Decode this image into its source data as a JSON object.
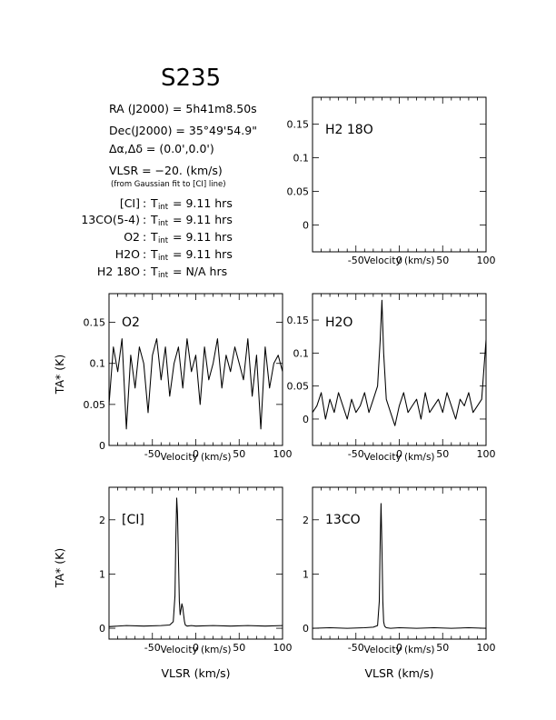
{
  "title": "S235",
  "info": {
    "ra": "RA (J2000) = 5h41m8.50s",
    "dec": "Dec(J2000) = 35°49'54.9\"",
    "offset": "Δα,Δδ = (0.0',0.0')",
    "vlsr": "VLSR = −20. (km/s)",
    "fit_note": "(from Gaussian fit to [CI] line)",
    "integrations": [
      {
        "line": "[CI]",
        "tint": "9.11 hrs"
      },
      {
        "line": "13CO(5-4)",
        "tint": "9.11 hrs"
      },
      {
        "line": "O2",
        "tint": "9.11 hrs"
      },
      {
        "line": "H2O",
        "tint": "9.11 hrs"
      },
      {
        "line": "H2 18O",
        "tint": "N/A hrs"
      }
    ]
  },
  "chart_data": [
    {
      "type": "line",
      "panel": "H2 18O",
      "label": "H2 18O",
      "xlabel": "Velocity (km/s)",
      "ylabel": "",
      "xlim": [
        -100,
        100
      ],
      "ylim": [
        -0.04,
        0.19
      ],
      "xticks": [
        -50,
        0,
        50,
        100
      ],
      "yticks": [
        0,
        0.05,
        0.1,
        0.15
      ],
      "ytick_labels": [
        "0",
        "0.05",
        "0.1",
        "0.15"
      ],
      "x": [],
      "y": []
    },
    {
      "type": "line",
      "panel": "O2",
      "label": "O2",
      "xlabel": "Velocity (km/s)",
      "ylabel": "TA* (K)",
      "xlim": [
        -100,
        100
      ],
      "ylim": [
        0,
        0.185
      ],
      "xticks": [
        -50,
        0,
        50,
        100
      ],
      "yticks": [
        0,
        0.05,
        0.1,
        0.15
      ],
      "ytick_labels": [
        "0",
        "0.05",
        "0.1",
        "0.15"
      ],
      "x": [
        -100,
        -95,
        -90,
        -85,
        -80,
        -75,
        -70,
        -65,
        -60,
        -55,
        -50,
        -45,
        -40,
        -35,
        -30,
        -25,
        -20,
        -15,
        -10,
        -5,
        0,
        5,
        10,
        15,
        20,
        25,
        30,
        35,
        40,
        45,
        50,
        55,
        60,
        65,
        70,
        75,
        80,
        85,
        90,
        95,
        100
      ],
      "y": [
        0.05,
        0.12,
        0.09,
        0.13,
        0.02,
        0.11,
        0.07,
        0.12,
        0.1,
        0.04,
        0.11,
        0.13,
        0.08,
        0.12,
        0.06,
        0.1,
        0.12,
        0.07,
        0.13,
        0.09,
        0.11,
        0.05,
        0.12,
        0.08,
        0.1,
        0.13,
        0.07,
        0.11,
        0.09,
        0.12,
        0.1,
        0.08,
        0.13,
        0.06,
        0.11,
        0.02,
        0.12,
        0.07,
        0.1,
        0.11,
        0.09
      ]
    },
    {
      "type": "line",
      "panel": "H2O",
      "label": "H2O",
      "xlabel": "Velocity (km/s)",
      "ylabel": "",
      "xlim": [
        -100,
        100
      ],
      "ylim": [
        -0.04,
        0.19
      ],
      "xticks": [
        -50,
        0,
        50,
        100
      ],
      "yticks": [
        0,
        0.05,
        0.1,
        0.15
      ],
      "ytick_labels": [
        "0",
        "0.05",
        "0.1",
        "0.15"
      ],
      "x": [
        -100,
        -95,
        -90,
        -85,
        -80,
        -75,
        -70,
        -65,
        -60,
        -55,
        -50,
        -45,
        -40,
        -35,
        -30,
        -25,
        -22,
        -20,
        -18,
        -15,
        -10,
        -5,
        0,
        5,
        10,
        15,
        20,
        25,
        30,
        35,
        40,
        45,
        50,
        55,
        60,
        65,
        70,
        75,
        80,
        85,
        90,
        95,
        100
      ],
      "y": [
        0.01,
        0.02,
        0.04,
        0.0,
        0.03,
        0.01,
        0.04,
        0.02,
        0.0,
        0.03,
        0.01,
        0.02,
        0.04,
        0.01,
        0.03,
        0.05,
        0.12,
        0.18,
        0.1,
        0.03,
        0.01,
        -0.01,
        0.02,
        0.04,
        0.01,
        0.02,
        0.03,
        0.0,
        0.04,
        0.01,
        0.02,
        0.03,
        0.01,
        0.04,
        0.02,
        0.0,
        0.03,
        0.02,
        0.04,
        0.01,
        0.02,
        0.03,
        0.12
      ]
    },
    {
      "type": "line",
      "panel": "[CI]",
      "label": "[CI]",
      "xlabel": "Velocity (km/s)",
      "ylabel": "TA* (K)",
      "xlabel2": "VLSR (km/s)",
      "xlim": [
        -100,
        100
      ],
      "ylim": [
        -0.2,
        2.6
      ],
      "xticks": [
        -50,
        0,
        50,
        100
      ],
      "yticks": [
        0,
        1,
        2
      ],
      "ytick_labels": [
        "0",
        "1",
        "2"
      ],
      "x": [
        -100,
        -80,
        -60,
        -40,
        -30,
        -26,
        -24,
        -23,
        -22,
        -21,
        -20,
        -19,
        -18,
        -17,
        -16,
        -15,
        -14,
        -13,
        -12,
        -10,
        -5,
        0,
        20,
        40,
        60,
        80,
        100
      ],
      "y": [
        0.03,
        0.05,
        0.04,
        0.05,
        0.06,
        0.12,
        0.6,
        1.6,
        2.4,
        2.1,
        1.3,
        0.5,
        0.25,
        0.35,
        0.45,
        0.38,
        0.25,
        0.12,
        0.06,
        0.04,
        0.05,
        0.04,
        0.05,
        0.04,
        0.05,
        0.04,
        0.05
      ]
    },
    {
      "type": "line",
      "panel": "13CO",
      "label": "13CO",
      "xlabel": "Velocity (km/s)",
      "ylabel": "",
      "xlabel2": "VLSR (km/s)",
      "xlim": [
        -100,
        100
      ],
      "ylim": [
        -0.2,
        2.6
      ],
      "xticks": [
        -50,
        0,
        50,
        100
      ],
      "yticks": [
        0,
        1,
        2
      ],
      "ytick_labels": [
        "0",
        "1",
        "2"
      ],
      "x": [
        -100,
        -80,
        -60,
        -40,
        -30,
        -25,
        -23,
        -22,
        -21,
        -20,
        -19,
        -18,
        -17,
        -15,
        -10,
        0,
        20,
        40,
        60,
        80,
        100
      ],
      "y": [
        0.0,
        0.01,
        0.0,
        0.01,
        0.02,
        0.05,
        0.5,
        1.6,
        2.3,
        1.5,
        0.5,
        0.12,
        0.04,
        0.01,
        0.0,
        0.01,
        0.0,
        0.01,
        0.0,
        0.01,
        0.0
      ]
    }
  ]
}
